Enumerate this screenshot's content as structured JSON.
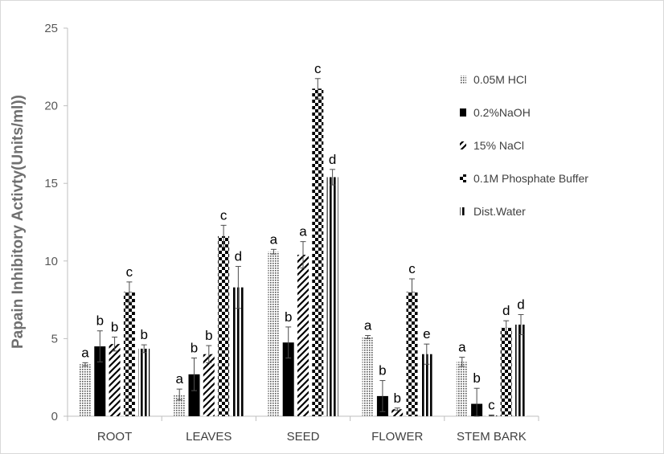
{
  "chart_data": {
    "type": "bar",
    "title": "",
    "xlabel": "",
    "ylabel": "Papain Inhibitory Activty(Units/ml))",
    "ylim": [
      0,
      25
    ],
    "yticks": [
      0,
      5,
      10,
      15,
      20,
      25
    ],
    "categories": [
      "ROOT",
      "LEAVES",
      "SEED",
      "FLOWER",
      "STEM BARK"
    ],
    "legend_position": "right",
    "grid": false,
    "series": [
      {
        "name": "0.05M HCl",
        "pattern": "dots",
        "values": [
          3.35,
          1.4,
          10.6,
          5.1,
          3.5
        ],
        "errors": [
          0.1,
          0.35,
          0.15,
          0.1,
          0.3
        ],
        "labels": [
          "a",
          "a",
          "a",
          "a",
          "a"
        ]
      },
      {
        "name": "0.2%NaOH",
        "pattern": "solid",
        "values": [
          4.5,
          2.7,
          4.75,
          1.3,
          0.8
        ],
        "errors": [
          1.0,
          1.05,
          1.0,
          1.0,
          1.0
        ],
        "labels": [
          "b",
          "b",
          "b",
          "b",
          "b"
        ]
      },
      {
        "name": "15% NaCl",
        "pattern": "diagonal",
        "values": [
          4.65,
          4.0,
          10.4,
          0.45,
          0.05
        ],
        "errors": [
          0.45,
          0.55,
          0.85,
          0.08,
          0.03
        ],
        "labels": [
          "b",
          "b",
          "a",
          "b",
          "c"
        ]
      },
      {
        "name": "0.1M Phosphate Buffer",
        "pattern": "checker",
        "values": [
          8.0,
          11.6,
          21.1,
          8.0,
          5.7
        ],
        "errors": [
          0.65,
          0.7,
          0.65,
          0.85,
          0.45
        ],
        "labels": [
          "c",
          "c",
          "c",
          "c",
          "d"
        ]
      },
      {
        "name": "Dist.Water",
        "pattern": "vstripes",
        "values": [
          4.35,
          8.3,
          15.4,
          4.0,
          5.9
        ],
        "errors": [
          0.25,
          1.35,
          0.5,
          0.65,
          0.65
        ],
        "labels": [
          "b",
          "d",
          "d",
          "e",
          "d"
        ]
      }
    ]
  }
}
